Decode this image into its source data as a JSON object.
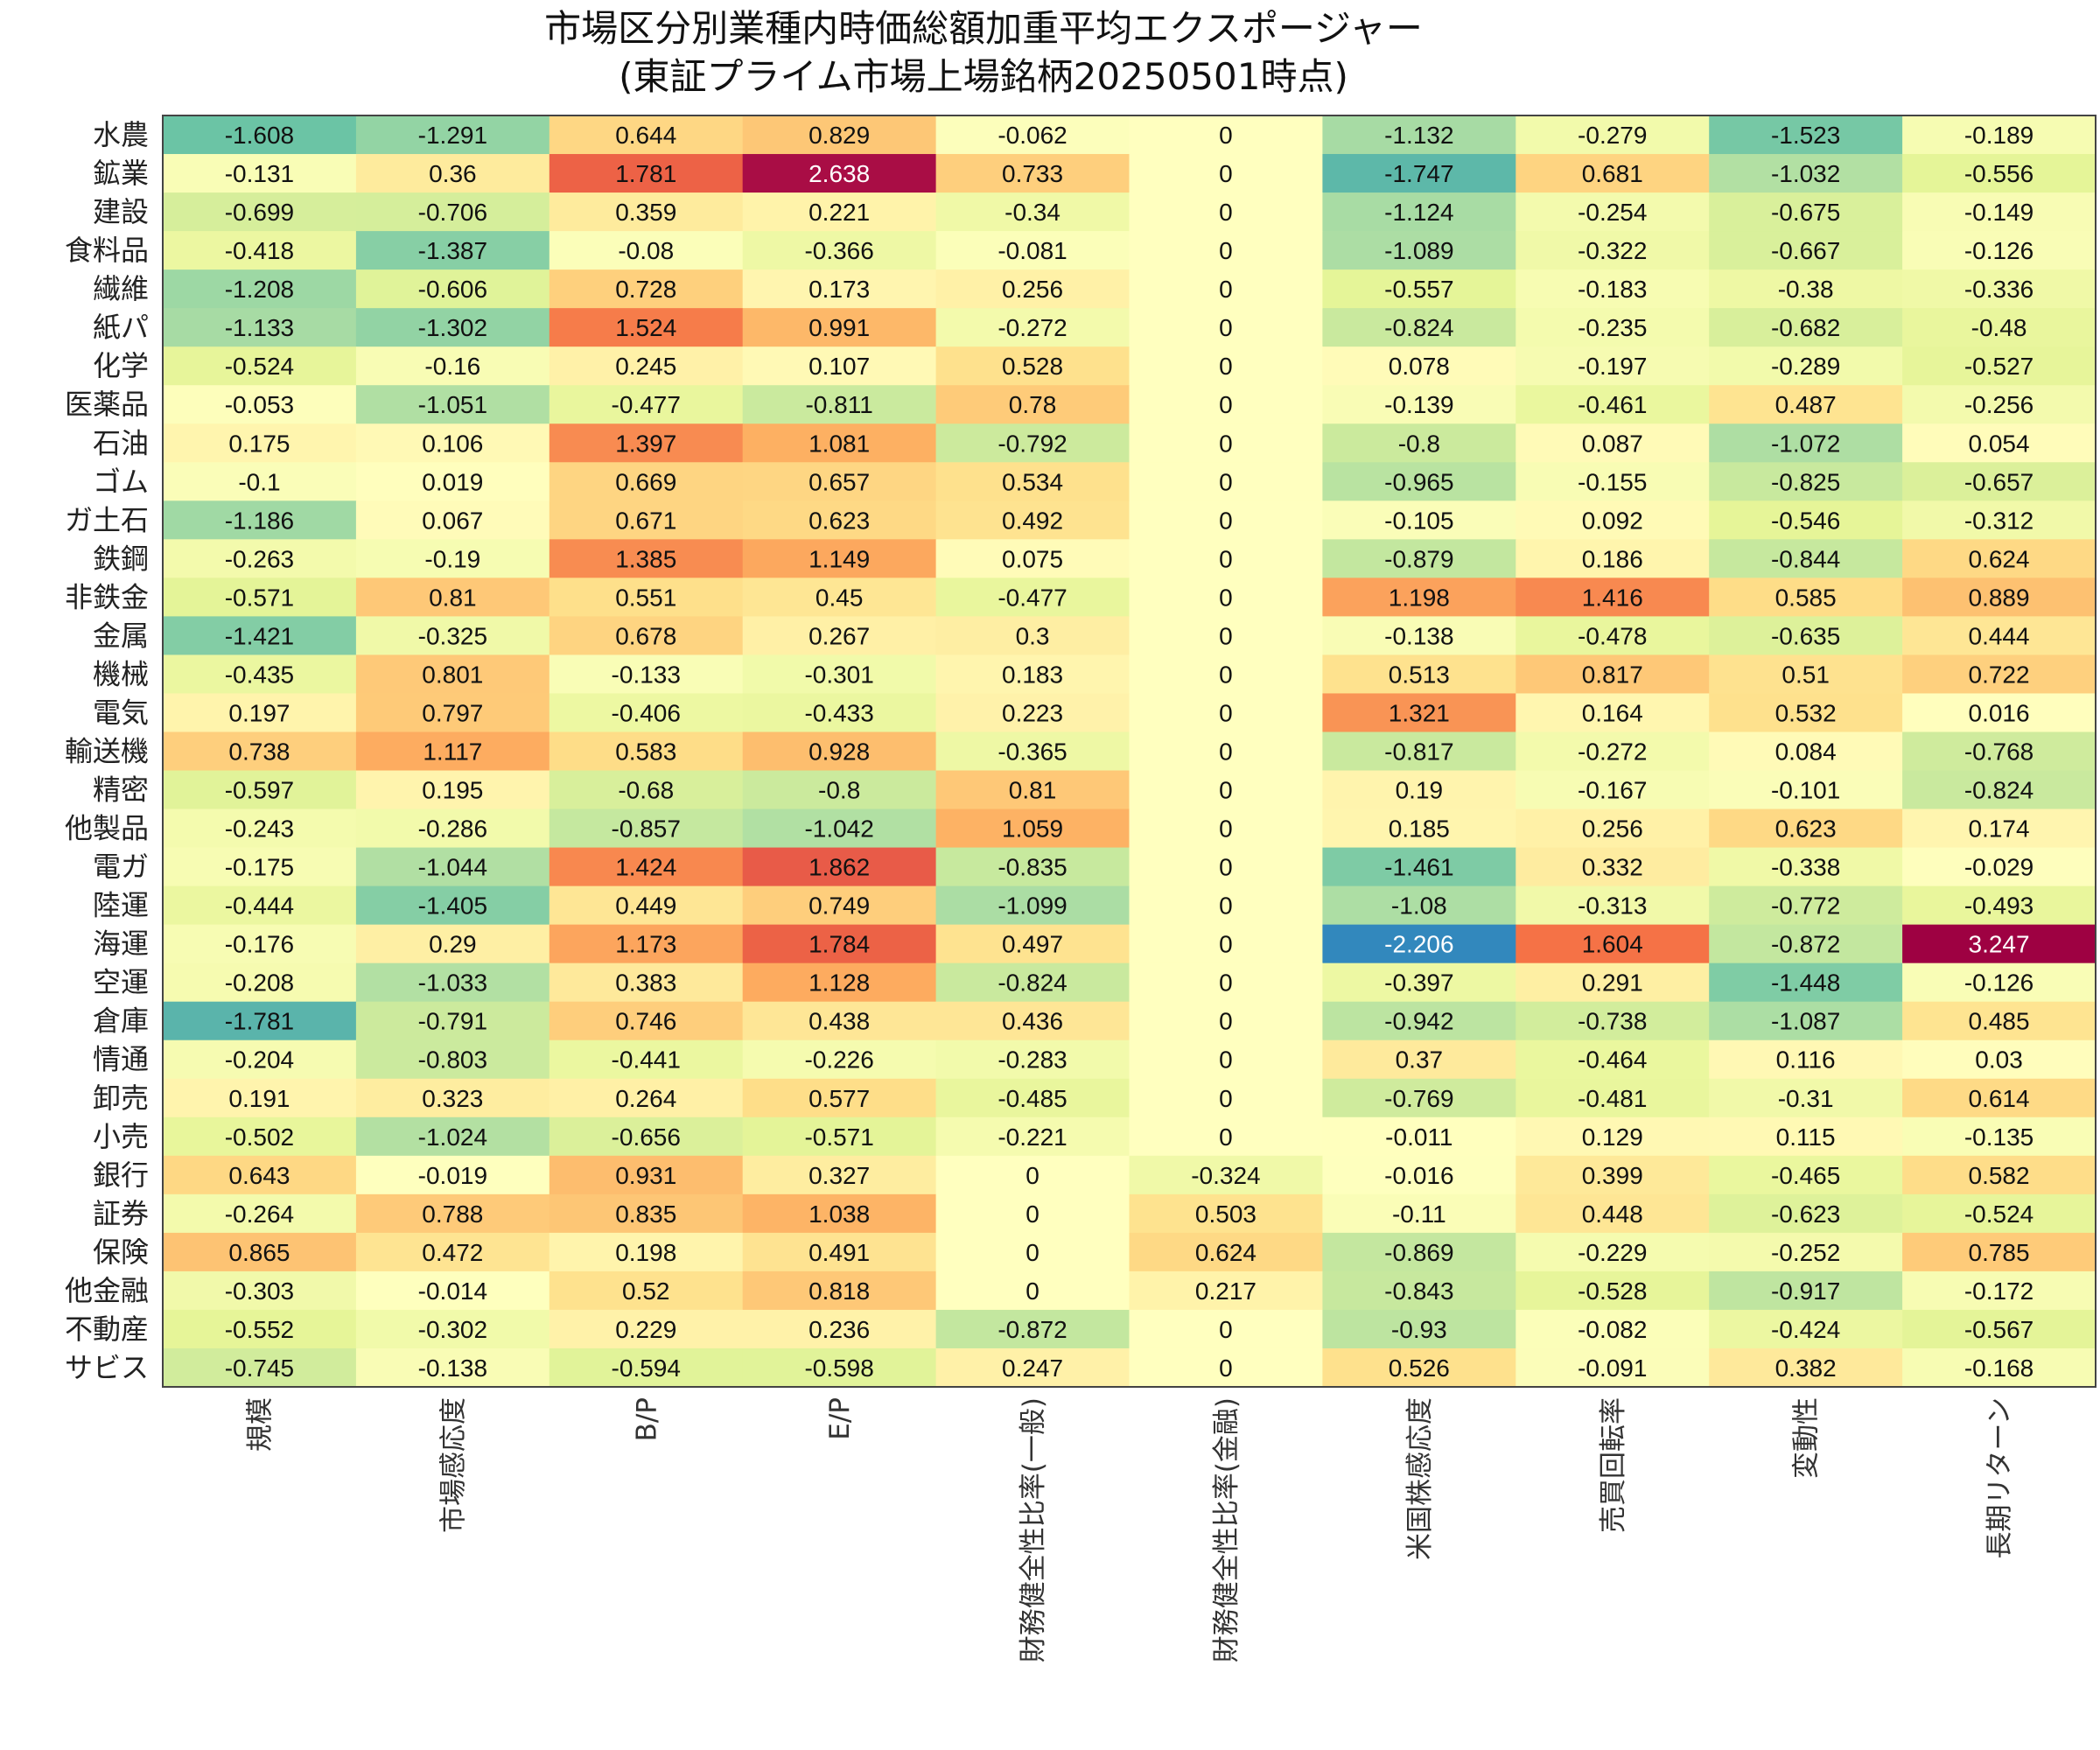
{
  "chart_data": {
    "type": "heatmap",
    "title": "市場区分別業種内時価総額加重平均エクスポージャー",
    "subtitle": "(東証プライム市場上場銘柄20250501時点)",
    "rows": [
      "水農",
      "鉱業",
      "建設",
      "食料品",
      "繊維",
      "紙パ",
      "化学",
      "医薬品",
      "石油",
      "ゴム",
      "ガ土石",
      "鉄鋼",
      "非鉄金",
      "金属",
      "機械",
      "電気",
      "輸送機",
      "精密",
      "他製品",
      "電ガ",
      "陸運",
      "海運",
      "空運",
      "倉庫",
      "情通",
      "卸売",
      "小売",
      "銀行",
      "証券",
      "保険",
      "他金融",
      "不動産",
      "サビス"
    ],
    "columns": [
      "規模",
      "市場感応度",
      "B/P",
      "E/P",
      "財務健全性比率(一般)",
      "財務健全性比率(金融)",
      "米国株感応度",
      "売買回転率",
      "変動性",
      "長期リターン"
    ],
    "values": [
      [
        -1.608,
        -1.291,
        0.644,
        0.829,
        -0.062,
        0,
        -1.132,
        -0.279,
        -1.523,
        -0.189
      ],
      [
        -0.131,
        0.36,
        1.781,
        2.638,
        0.733,
        0,
        -1.747,
        0.681,
        -1.032,
        -0.556
      ],
      [
        -0.699,
        -0.706,
        0.359,
        0.221,
        -0.34,
        0,
        -1.124,
        -0.254,
        -0.675,
        -0.149
      ],
      [
        -0.418,
        -1.387,
        -0.08,
        -0.366,
        -0.081,
        0,
        -1.089,
        -0.322,
        -0.667,
        -0.126
      ],
      [
        -1.208,
        -0.606,
        0.728,
        0.173,
        0.256,
        0,
        -0.557,
        -0.183,
        -0.38,
        -0.336
      ],
      [
        -1.133,
        -1.302,
        1.524,
        0.991,
        -0.272,
        0,
        -0.824,
        -0.235,
        -0.682,
        -0.48
      ],
      [
        -0.524,
        -0.16,
        0.245,
        0.107,
        0.528,
        0,
        0.078,
        -0.197,
        -0.289,
        -0.527
      ],
      [
        -0.053,
        -1.051,
        -0.477,
        -0.811,
        0.78,
        0,
        -0.139,
        -0.461,
        0.487,
        -0.256
      ],
      [
        0.175,
        0.106,
        1.397,
        1.081,
        -0.792,
        0,
        -0.8,
        0.087,
        -1.072,
        0.054
      ],
      [
        -0.1,
        0.019,
        0.669,
        0.657,
        0.534,
        0,
        -0.965,
        -0.155,
        -0.825,
        -0.657
      ],
      [
        -1.186,
        0.067,
        0.671,
        0.623,
        0.492,
        0,
        -0.105,
        0.092,
        -0.546,
        -0.312
      ],
      [
        -0.263,
        -0.19,
        1.385,
        1.149,
        0.075,
        0,
        -0.879,
        0.186,
        -0.844,
        0.624
      ],
      [
        -0.571,
        0.81,
        0.551,
        0.45,
        -0.477,
        0,
        1.198,
        1.416,
        0.585,
        0.889
      ],
      [
        -1.421,
        -0.325,
        0.678,
        0.267,
        0.3,
        0,
        -0.138,
        -0.478,
        -0.635,
        0.444
      ],
      [
        -0.435,
        0.801,
        -0.133,
        -0.301,
        0.183,
        0,
        0.513,
        0.817,
        0.51,
        0.722
      ],
      [
        0.197,
        0.797,
        -0.406,
        -0.433,
        0.223,
        0,
        1.321,
        0.164,
        0.532,
        0.016
      ],
      [
        0.738,
        1.117,
        0.583,
        0.928,
        -0.365,
        0,
        -0.817,
        -0.272,
        0.084,
        -0.768
      ],
      [
        -0.597,
        0.195,
        -0.68,
        -0.8,
        0.81,
        0,
        0.19,
        -0.167,
        -0.101,
        -0.824
      ],
      [
        -0.243,
        -0.286,
        -0.857,
        -1.042,
        1.059,
        0,
        0.185,
        0.256,
        0.623,
        0.174
      ],
      [
        -0.175,
        -1.044,
        1.424,
        1.862,
        -0.835,
        0,
        -1.461,
        0.332,
        -0.338,
        -0.029
      ],
      [
        -0.444,
        -1.405,
        0.449,
        0.749,
        -1.099,
        0,
        -1.08,
        -0.313,
        -0.772,
        -0.493
      ],
      [
        -0.176,
        0.29,
        1.173,
        1.784,
        0.497,
        0,
        -2.206,
        1.604,
        -0.872,
        3.247
      ],
      [
        -0.208,
        -1.033,
        0.383,
        1.128,
        -0.824,
        0,
        -0.397,
        0.291,
        -1.448,
        -0.126
      ],
      [
        -1.781,
        -0.791,
        0.746,
        0.438,
        0.436,
        0,
        -0.942,
        -0.738,
        -1.087,
        0.485
      ],
      [
        -0.204,
        -0.803,
        -0.441,
        -0.226,
        -0.283,
        0,
        0.37,
        -0.464,
        0.116,
        0.03
      ],
      [
        0.191,
        0.323,
        0.264,
        0.577,
        -0.485,
        0,
        -0.769,
        -0.481,
        -0.31,
        0.614
      ],
      [
        -0.502,
        -1.024,
        -0.656,
        -0.571,
        -0.221,
        0,
        -0.011,
        0.129,
        0.115,
        -0.135
      ],
      [
        0.643,
        -0.019,
        0.931,
        0.327,
        0,
        -0.324,
        -0.016,
        0.399,
        -0.465,
        0.582
      ],
      [
        -0.264,
        0.788,
        0.835,
        1.038,
        0,
        0.503,
        -0.11,
        0.448,
        -0.623,
        -0.524
      ],
      [
        0.865,
        0.472,
        0.198,
        0.491,
        0,
        0.624,
        -0.869,
        -0.229,
        -0.252,
        0.785
      ],
      [
        -0.303,
        -0.014,
        0.52,
        0.818,
        0,
        0.217,
        -0.843,
        -0.528,
        -0.917,
        -0.172
      ],
      [
        -0.552,
        -0.302,
        0.229,
        0.236,
        -0.872,
        0,
        -0.93,
        -0.082,
        -0.424,
        -0.567
      ],
      [
        -0.745,
        -0.138,
        -0.594,
        -0.598,
        0.247,
        0,
        0.526,
        -0.091,
        0.382,
        -0.168
      ]
    ],
    "colormap": "Spectral_r",
    "color_range": [
      -2.2,
      2.2
    ],
    "colorbar": false,
    "frame_color": "#444444"
  }
}
